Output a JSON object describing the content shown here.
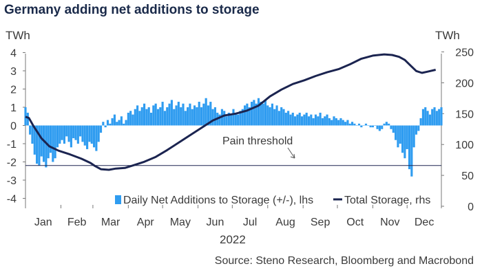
{
  "title": "Germany adding net additions to storage",
  "unit_left": "TWh",
  "unit_right": "TWh",
  "year_label": "2022",
  "source": "Source: Steno Research, Bloomberg and Macrobond",
  "colors": {
    "bars": "#2f9cf0",
    "line": "#1b2450",
    "threshold": "#1b2450",
    "axis": "#777777"
  },
  "chart_data": {
    "type": "bar+line",
    "title": "Germany adding net additions to storage",
    "annotation": "Pain threshold",
    "x_categories": [
      "Jan",
      "Feb",
      "Mar",
      "Apr",
      "May",
      "Jun",
      "Jul",
      "Aug",
      "Sep",
      "Oct",
      "Nov",
      "Dec"
    ],
    "y_left": {
      "label": "TWh",
      "ticks": [
        4,
        3,
        2,
        1,
        0,
        -1,
        -2,
        -3,
        -4
      ],
      "range": [
        -4,
        4
      ]
    },
    "y_right": {
      "label": "TWh",
      "ticks": [
        250,
        200,
        150,
        100,
        50,
        0
      ],
      "range": [
        0,
        250
      ]
    },
    "threshold_right_value": 66,
    "legend": {
      "position": "bottom-right"
    },
    "series": [
      {
        "name": "Daily Net Additions to Storage (+/-), lhs",
        "type": "bar",
        "axis": "left",
        "points": [
          [
            1,
            1.0
          ],
          [
            3,
            0.7
          ],
          [
            5,
            -0.5
          ],
          [
            7,
            -1.0
          ],
          [
            9,
            -1.6
          ],
          [
            11,
            -2.1
          ],
          [
            13,
            -2.2
          ],
          [
            15,
            -1.7
          ],
          [
            17,
            -2.0
          ],
          [
            19,
            -2.3
          ],
          [
            21,
            -1.8
          ],
          [
            23,
            -1.5
          ],
          [
            25,
            -2.0
          ],
          [
            27,
            -1.8
          ],
          [
            29,
            -1.2
          ],
          [
            31,
            -1.0
          ],
          [
            33,
            -0.8
          ],
          [
            35,
            -1.0
          ],
          [
            37,
            -0.6
          ],
          [
            39,
            -0.9
          ],
          [
            41,
            -1.2
          ],
          [
            43,
            -0.7
          ],
          [
            45,
            -0.8
          ],
          [
            47,
            -1.0
          ],
          [
            49,
            -0.6
          ],
          [
            51,
            -0.9
          ],
          [
            53,
            -1.1
          ],
          [
            55,
            -1.3
          ],
          [
            57,
            -0.9
          ],
          [
            59,
            -1.0
          ],
          [
            61,
            -1.2
          ],
          [
            63,
            -1.4
          ],
          [
            65,
            -0.9
          ],
          [
            67,
            -0.4
          ],
          [
            69,
            0.2
          ],
          [
            71,
            -0.1
          ],
          [
            73,
            0.3
          ],
          [
            75,
            0.1
          ],
          [
            77,
            0.4
          ],
          [
            79,
            0.6
          ],
          [
            81,
            0.2
          ],
          [
            83,
            0.3
          ],
          [
            85,
            0.5
          ],
          [
            87,
            0.1
          ],
          [
            89,
            0.3
          ],
          [
            91,
            0.7
          ],
          [
            93,
            0.8
          ],
          [
            95,
            0.6
          ],
          [
            97,
            0.9
          ],
          [
            99,
            1.1
          ],
          [
            101,
            0.8
          ],
          [
            103,
            1.0
          ],
          [
            105,
            1.2
          ],
          [
            107,
            0.9
          ],
          [
            109,
            1.0
          ],
          [
            111,
            0.7
          ],
          [
            113,
            1.1
          ],
          [
            115,
            1.2
          ],
          [
            117,
            0.9
          ],
          [
            119,
            1.0
          ],
          [
            121,
            1.3
          ],
          [
            123,
            0.8
          ],
          [
            125,
            1.0
          ],
          [
            127,
            1.2
          ],
          [
            129,
            1.4
          ],
          [
            131,
            0.9
          ],
          [
            133,
            1.1
          ],
          [
            135,
            1.3
          ],
          [
            137,
            1.0
          ],
          [
            139,
            1.2
          ],
          [
            141,
            0.8
          ],
          [
            143,
            1.0
          ],
          [
            145,
            1.2
          ],
          [
            147,
            0.9
          ],
          [
            149,
            1.1
          ],
          [
            151,
            1.0
          ],
          [
            153,
            1.3
          ],
          [
            155,
            1.0
          ],
          [
            157,
            1.2
          ],
          [
            159,
            1.5
          ],
          [
            161,
            1.1
          ],
          [
            163,
            1.3
          ],
          [
            165,
            0.9
          ],
          [
            167,
            1.0
          ],
          [
            169,
            0.7
          ],
          [
            171,
            0.6
          ],
          [
            173,
            0.9
          ],
          [
            175,
            0.8
          ],
          [
            177,
            0.5
          ],
          [
            179,
            0.7
          ],
          [
            181,
            0.6
          ],
          [
            183,
            0.9
          ],
          [
            185,
            0.7
          ],
          [
            187,
            0.6
          ],
          [
            189,
            0.8
          ],
          [
            191,
            0.9
          ],
          [
            193,
            1.1
          ],
          [
            195,
            1.2
          ],
          [
            197,
            1.0
          ],
          [
            199,
            1.3
          ],
          [
            201,
            1.4
          ],
          [
            203,
            1.2
          ],
          [
            205,
            1.5
          ],
          [
            207,
            1.3
          ],
          [
            209,
            1.2
          ],
          [
            211,
            1.4
          ],
          [
            213,
            1.1
          ],
          [
            215,
            1.0
          ],
          [
            217,
            1.2
          ],
          [
            219,
            0.9
          ],
          [
            221,
            1.1
          ],
          [
            223,
            0.8
          ],
          [
            225,
            1.0
          ],
          [
            227,
            0.9
          ],
          [
            229,
            0.7
          ],
          [
            231,
            0.8
          ],
          [
            233,
            0.6
          ],
          [
            235,
            0.7
          ],
          [
            237,
            0.5
          ],
          [
            239,
            0.6
          ],
          [
            241,
            0.7
          ],
          [
            243,
            0.5
          ],
          [
            245,
            0.6
          ],
          [
            247,
            0.7
          ],
          [
            249,
            0.5
          ],
          [
            251,
            0.6
          ],
          [
            253,
            0.4
          ],
          [
            255,
            0.6
          ],
          [
            257,
            0.5
          ],
          [
            259,
            0.7
          ],
          [
            261,
            0.4
          ],
          [
            263,
            0.5
          ],
          [
            265,
            0.6
          ],
          [
            267,
            0.4
          ],
          [
            269,
            0.3
          ],
          [
            271,
            0.5
          ],
          [
            273,
            0.4
          ],
          [
            275,
            0.3
          ],
          [
            277,
            0.4
          ],
          [
            279,
            0.3
          ],
          [
            281,
            0.2
          ],
          [
            283,
            0.3
          ],
          [
            285,
            0.1
          ],
          [
            287,
            0.2
          ],
          [
            289,
            0.1
          ],
          [
            291,
            0.0
          ],
          [
            293,
            0.1
          ],
          [
            295,
            -0.1
          ],
          [
            297,
            0.0
          ],
          [
            299,
            0.1
          ],
          [
            301,
            0.0
          ],
          [
            303,
            -0.1
          ],
          [
            305,
            -0.1
          ],
          [
            307,
            0.0
          ],
          [
            309,
            -0.2
          ],
          [
            311,
            -0.3
          ],
          [
            313,
            -0.2
          ],
          [
            315,
            0.1
          ],
          [
            317,
            0.2
          ],
          [
            319,
            0.1
          ],
          [
            321,
            -0.2
          ],
          [
            323,
            -0.4
          ],
          [
            325,
            -0.8
          ],
          [
            327,
            -1.2
          ],
          [
            329,
            -1.0
          ],
          [
            331,
            -1.5
          ],
          [
            333,
            -1.8
          ],
          [
            335,
            -1.3
          ],
          [
            337,
            -2.4
          ],
          [
            339,
            -2.8
          ],
          [
            341,
            -1.2
          ],
          [
            343,
            -0.5
          ],
          [
            345,
            -0.3
          ],
          [
            347,
            0.4
          ],
          [
            349,
            0.9
          ],
          [
            351,
            1.0
          ],
          [
            353,
            0.8
          ],
          [
            355,
            0.6
          ],
          [
            357,
            0.9
          ],
          [
            359,
            1.0
          ],
          [
            361,
            0.8
          ],
          [
            363,
            0.9
          ],
          [
            365,
            1.0
          ]
        ]
      },
      {
        "name": "Total Storage, rhs",
        "type": "line",
        "axis": "right",
        "points": [
          [
            1,
            145
          ],
          [
            4,
            143
          ],
          [
            8,
            130
          ],
          [
            15,
            110
          ],
          [
            22,
            97
          ],
          [
            30,
            90
          ],
          [
            40,
            84
          ],
          [
            50,
            77
          ],
          [
            58,
            70
          ],
          [
            62,
            65
          ],
          [
            67,
            60
          ],
          [
            74,
            59
          ],
          [
            80,
            61
          ],
          [
            88,
            62
          ],
          [
            95,
            66
          ],
          [
            105,
            72
          ],
          [
            115,
            80
          ],
          [
            125,
            91
          ],
          [
            135,
            103
          ],
          [
            145,
            115
          ],
          [
            155,
            127
          ],
          [
            165,
            139
          ],
          [
            175,
            147
          ],
          [
            185,
            150
          ],
          [
            195,
            155
          ],
          [
            205,
            163
          ],
          [
            215,
            178
          ],
          [
            225,
            189
          ],
          [
            235,
            198
          ],
          [
            245,
            204
          ],
          [
            255,
            211
          ],
          [
            265,
            217
          ],
          [
            275,
            222
          ],
          [
            285,
            230
          ],
          [
            295,
            239
          ],
          [
            305,
            244
          ],
          [
            315,
            246
          ],
          [
            322,
            245
          ],
          [
            328,
            242
          ],
          [
            333,
            237
          ],
          [
            338,
            228
          ],
          [
            343,
            219
          ],
          [
            348,
            216
          ],
          [
            353,
            218
          ],
          [
            360,
            221
          ]
        ]
      }
    ]
  }
}
